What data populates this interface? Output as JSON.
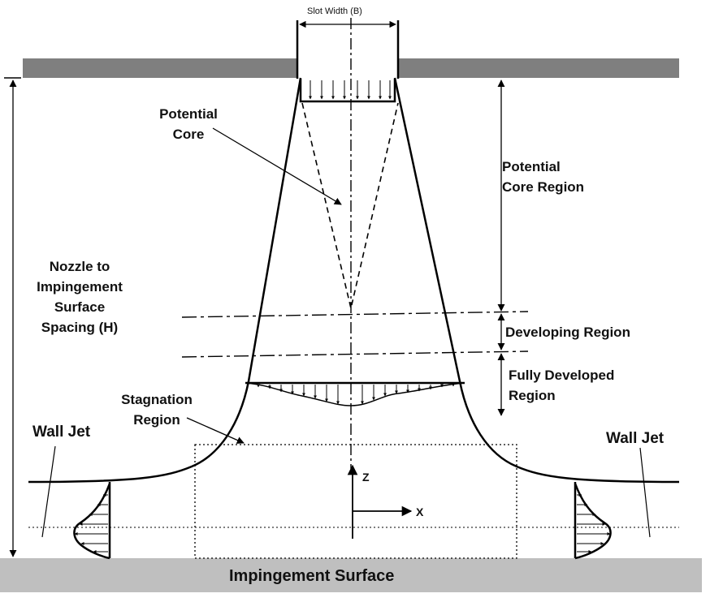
{
  "labels": {
    "slot_width": "Slot Width (B)",
    "potential_core_line1": "Potential",
    "potential_core_line2": "Core",
    "potential_core_region_line1": "Potential",
    "potential_core_region_line2": "Core Region",
    "spacing_line1": "Nozzle to",
    "spacing_line2": "Impingement",
    "spacing_line3": "Surface",
    "spacing_line4": "Spacing (H)",
    "developing_region": "Developing Region",
    "fully_developed_line1": "Fully Developed",
    "fully_developed_line2": "Region",
    "stagnation_line1": "Stagnation",
    "stagnation_line2": "Region",
    "wall_jet_left": "Wall Jet",
    "wall_jet_right": "Wall Jet",
    "axis_z": "Z",
    "axis_x": "X",
    "impingement_surface": "Impingement Surface"
  },
  "colors": {
    "plate": "#7f7f7f",
    "surface": "#bfbfbf",
    "line": "#000000"
  }
}
